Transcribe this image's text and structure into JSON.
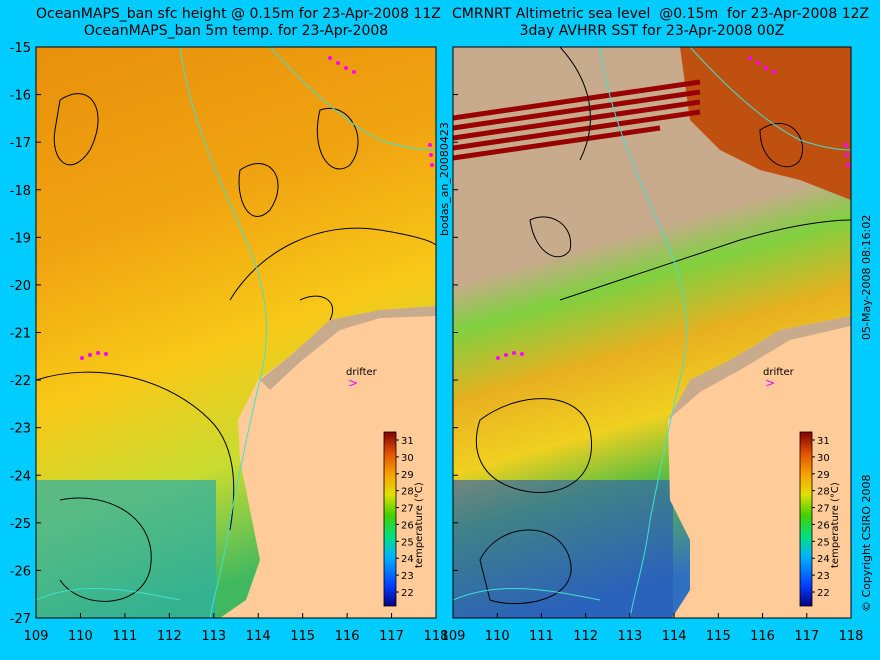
{
  "titles": {
    "left": "OceanMAPS_ban sfc height @ 0.15m for 23-Apr-2008 11Z\nOceanMAPS_ban 5m temp. for 23-Apr-2008",
    "right": "CMRNRT Altimetric sea level  @0.15m  for 23-Apr-2008 12Z\n3day AVHRR SST for 23-Apr-2008 00Z"
  },
  "side_id": "bodas_an_20080423",
  "copyright": "© Copyright CSIRO 2008",
  "timestamp": "05-May-2008 08:16:02",
  "axes": {
    "lon_ticks": [
      "109",
      "110",
      "111",
      "112",
      "113",
      "114",
      "115",
      "116",
      "117",
      "118"
    ],
    "lat_ticks": [
      "-15",
      "-16",
      "-17",
      "-18",
      "-19",
      "-20",
      "-21",
      "-22",
      "-23",
      "-24",
      "-25",
      "-26",
      "-27"
    ]
  },
  "colorbar": {
    "label": "temperature (°C)",
    "ticks": [
      "31",
      "30",
      "29",
      "28",
      "27",
      "26",
      "25",
      "24",
      "23",
      "22"
    ]
  },
  "annotations": {
    "drifter_label": "drifter"
  },
  "colors": {
    "background": "#00ccff",
    "land": "#ffcc99",
    "mask": "#c8aa8c",
    "isobath": "#40e0d0",
    "drifter": "#ff00ff",
    "cloud_red": "#990000"
  }
}
